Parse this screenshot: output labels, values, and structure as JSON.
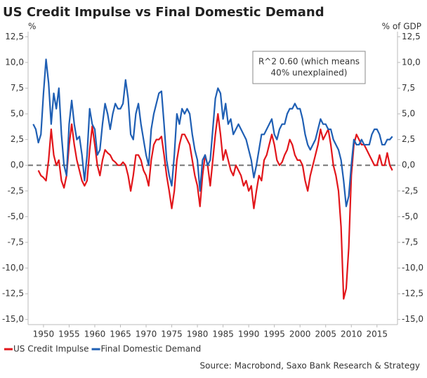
{
  "chart_data": {
    "type": "line",
    "title": "US Credit Impulse vs Final Domestic Demand",
    "y_label": "%",
    "y2_label": "% of GDP",
    "annotation": [
      "R^2 0.60 (which means",
      "40% unexplained)"
    ],
    "source": "Source: Macrobond, Saxo Bank Research & Strategy",
    "legend": "bottom-left",
    "xlim": [
      1947,
      2019
    ],
    "xticks": [
      1950,
      1955,
      1960,
      1965,
      1970,
      1975,
      1980,
      1985,
      1990,
      1995,
      2000,
      2005,
      2010,
      2015
    ],
    "ylim": [
      -15.5,
      13
    ],
    "yticks": [
      {
        "value": 12.5,
        "label": "12,5"
      },
      {
        "value": 10,
        "label": "10,0"
      },
      {
        "value": 7.5,
        "label": "7,5"
      },
      {
        "value": 5,
        "label": "5,0"
      },
      {
        "value": 2.5,
        "label": "2,5"
      },
      {
        "value": 0,
        "label": "0,0"
      },
      {
        "value": -2.5,
        "label": "-2,5"
      },
      {
        "value": -5,
        "label": "-5,0"
      },
      {
        "value": -7.5,
        "label": "-7,5"
      },
      {
        "value": -10,
        "label": "-10,0"
      },
      {
        "value": -12.5,
        "label": "-12,5"
      },
      {
        "value": -15,
        "label": "-15,0"
      }
    ],
    "y2lim": [
      -15.5,
      13
    ],
    "y2ticks": [
      {
        "value": 12.5,
        "label": "12,5"
      },
      {
        "value": 10,
        "label": "10,0"
      },
      {
        "value": 7.5,
        "label": "7,5"
      },
      {
        "value": 5,
        "label": "5,0"
      },
      {
        "value": 2.5,
        "label": "2,5"
      },
      {
        "value": 0,
        "label": "0,0"
      },
      {
        "value": -2.5,
        "label": "-2,5"
      },
      {
        "value": -5,
        "label": "-5,0"
      },
      {
        "value": -7.5,
        "label": "-7,5"
      },
      {
        "value": -10,
        "label": "-10,0"
      },
      {
        "value": -12.5,
        "label": "-12,5"
      },
      {
        "value": -15,
        "label": "-15,0"
      }
    ],
    "x": [
      1948,
      1948.5,
      1949,
      1949.5,
      1950,
      1950.5,
      1951,
      1951.5,
      1952,
      1952.5,
      1953,
      1953.5,
      1954,
      1954.5,
      1955,
      1955.5,
      1956,
      1956.5,
      1957,
      1957.5,
      1958,
      1958.5,
      1959,
      1959.5,
      1960,
      1960.5,
      1961,
      1961.5,
      1962,
      1962.5,
      1963,
      1963.5,
      1964,
      1964.5,
      1965,
      1965.5,
      1966,
      1966.5,
      1967,
      1967.5,
      1968,
      1968.5,
      1969,
      1969.5,
      1970,
      1970.5,
      1971,
      1971.5,
      1972,
      1972.5,
      1973,
      1973.5,
      1974,
      1974.5,
      1975,
      1975.5,
      1976,
      1976.5,
      1977,
      1977.5,
      1978,
      1978.5,
      1979,
      1979.5,
      1980,
      1980.5,
      1981,
      1981.5,
      1982,
      1982.5,
      1983,
      1983.5,
      1984,
      1984.5,
      1985,
      1985.5,
      1986,
      1986.5,
      1987,
      1987.5,
      1988,
      1988.5,
      1989,
      1989.5,
      1990,
      1990.5,
      1991,
      1991.5,
      1992,
      1992.5,
      1993,
      1993.5,
      1994,
      1994.5,
      1995,
      1995.5,
      1996,
      1996.5,
      1997,
      1997.5,
      1998,
      1998.5,
      1999,
      1999.5,
      2000,
      2000.5,
      2001,
      2001.5,
      2002,
      2002.5,
      2003,
      2003.5,
      2004,
      2004.5,
      2005,
      2005.5,
      2006,
      2006.5,
      2007,
      2007.5,
      2008,
      2008.5,
      2009,
      2009.5,
      2010,
      2010.5,
      2011,
      2011.5,
      2012,
      2012.5,
      2013,
      2013.5,
      2014,
      2014.5,
      2015,
      2015.5,
      2016,
      2016.5,
      2017,
      2017.5,
      2018
    ],
    "series": [
      {
        "name": "US Credit Impulse",
        "color": "#e2161b",
        "values": [
          null,
          null,
          -0.5,
          -1.0,
          -1.2,
          -1.5,
          0.5,
          3.5,
          1.0,
          0.0,
          0.5,
          -1.5,
          -2.2,
          -1.0,
          2.0,
          4.0,
          2.0,
          0.5,
          -0.5,
          -1.5,
          -2.0,
          -1.5,
          1.5,
          3.8,
          2.0,
          0.0,
          -1.0,
          0.5,
          1.5,
          1.2,
          1.0,
          0.5,
          0.3,
          0.0,
          0.0,
          0.3,
          0.0,
          -1.0,
          -2.5,
          -1.0,
          1.0,
          1.0,
          0.5,
          -0.5,
          -1.0,
          -2.0,
          0.5,
          2.0,
          2.5,
          2.5,
          2.8,
          1.0,
          -1.0,
          -2.5,
          -4.2,
          -2.5,
          0.5,
          2.0,
          3.0,
          3.0,
          2.5,
          2.0,
          0.5,
          -1.0,
          -2.0,
          -4.0,
          -1.0,
          1.0,
          0.0,
          -2.0,
          0.5,
          3.0,
          5.0,
          3.0,
          0.5,
          1.5,
          0.5,
          -0.5,
          -1.0,
          0.0,
          -0.5,
          -1.0,
          -2.0,
          -1.5,
          -2.5,
          -2.0,
          -4.2,
          -2.5,
          -1.0,
          -1.5,
          0.5,
          1.0,
          2.0,
          3.0,
          2.0,
          0.5,
          0.0,
          0.3,
          1.0,
          1.5,
          2.5,
          2.0,
          1.0,
          0.5,
          0.5,
          0.0,
          -1.5,
          -2.5,
          -1.0,
          0.0,
          1.0,
          2.0,
          3.5,
          2.5,
          3.0,
          3.5,
          2.0,
          0.0,
          -1.0,
          -2.5,
          -6.0,
          -13.0,
          -12.0,
          -8.0,
          -1.0,
          2.0,
          3.0,
          2.5,
          2.0,
          2.0,
          1.5,
          1.0,
          0.5,
          0.0,
          0.0,
          1.0,
          0.0,
          0.0,
          1.2,
          0.0,
          -0.5
        ]
      },
      {
        "name": "Final Domestic Demand",
        "color": "#1f5fb4",
        "values": [
          4.0,
          3.5,
          2.2,
          3.0,
          7.0,
          10.3,
          8.0,
          4.0,
          7.0,
          5.5,
          7.5,
          3.0,
          0.0,
          -1.0,
          4.0,
          6.3,
          4.0,
          2.5,
          2.8,
          1.0,
          -1.5,
          1.0,
          5.5,
          4.0,
          3.5,
          1.0,
          1.5,
          4.0,
          6.0,
          5.0,
          3.5,
          5.0,
          6.0,
          5.5,
          5.5,
          6.0,
          8.3,
          6.5,
          3.0,
          2.5,
          5.0,
          6.0,
          4.0,
          2.5,
          1.0,
          0.0,
          3.5,
          5.0,
          6.0,
          7.0,
          7.2,
          4.0,
          0.5,
          -1.0,
          -2.0,
          1.0,
          5.0,
          4.0,
          5.5,
          5.0,
          5.5,
          5.0,
          3.0,
          1.5,
          0.5,
          -2.5,
          0.5,
          1.0,
          0.0,
          0.5,
          3.5,
          6.5,
          7.5,
          7.0,
          4.5,
          6.0,
          4.0,
          4.5,
          3.0,
          3.5,
          4.0,
          3.5,
          3.0,
          2.5,
          1.5,
          0.5,
          -1.2,
          0.0,
          1.5,
          3.0,
          3.0,
          3.5,
          4.0,
          4.5,
          3.0,
          2.5,
          3.5,
          4.0,
          4.0,
          5.0,
          5.5,
          5.5,
          6.0,
          5.5,
          5.5,
          4.5,
          3.0,
          2.0,
          1.5,
          2.0,
          2.5,
          3.5,
          4.5,
          4.0,
          4.0,
          3.5,
          3.5,
          2.5,
          2.0,
          1.5,
          0.5,
          -1.5,
          -4.0,
          -3.0,
          0.0,
          2.5,
          2.0,
          2.0,
          2.5,
          2.0,
          2.0,
          2.0,
          3.0,
          3.5,
          3.5,
          3.0,
          2.0,
          2.0,
          2.5,
          2.5,
          2.8
        ]
      }
    ]
  }
}
